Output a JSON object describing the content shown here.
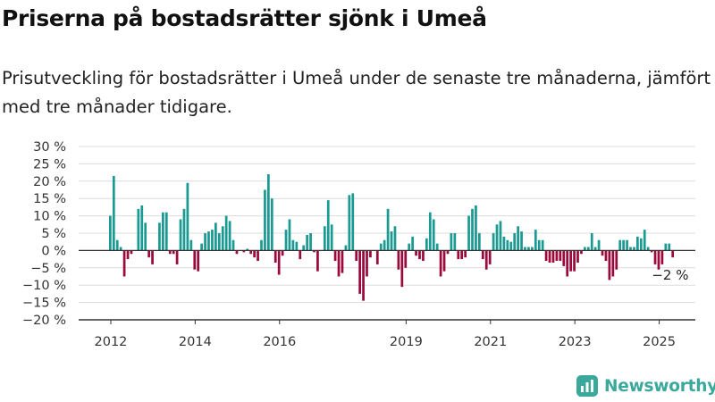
{
  "title": "Priserna på bostadsrätter sjönk i Umeå",
  "subtitle": "Prisutveckling för bostadsrätter i Umeå under de senaste tre månaderna, jämfört med tre månader tidigare.",
  "brand": {
    "name": "Newsworthy",
    "icon": "newsworthy-logo-icon",
    "color": "#3aa89a"
  },
  "colors": {
    "positive": "#1a9a92",
    "negative": "#9b0a3c",
    "grid": "#dcdcdc",
    "axis": "#333333"
  },
  "chart_data": {
    "type": "bar",
    "title": "Priserna på bostadsrätter sjönk i Umeå",
    "xlabel": "",
    "ylabel": "",
    "ylim": [
      -20,
      30
    ],
    "yticks": [
      30,
      25,
      20,
      15,
      10,
      5,
      0,
      -5,
      -10,
      -15,
      -20
    ],
    "ytick_labels": [
      "30 %",
      "25 %",
      "20 %",
      "15 %",
      "10 %",
      "5 %",
      "0 %",
      "−5 %",
      "−10 %",
      "−15 %",
      "−20 %"
    ],
    "xticks": [
      "2012",
      "2014",
      "2016",
      "2019",
      "2021",
      "2023",
      "2025"
    ],
    "grid": true,
    "annotation": {
      "text": "−2 %"
    },
    "x_start": "2012-01",
    "frequency": "monthly",
    "values": [
      10,
      21.5,
      3,
      1,
      -7.5,
      -2.5,
      -1,
      0,
      12,
      13,
      8,
      -2,
      -4,
      0,
      8,
      11,
      11,
      -1,
      -1,
      -4,
      9,
      12,
      19.5,
      3,
      -5.5,
      -6,
      2,
      5,
      5.5,
      6,
      8,
      5,
      7,
      10,
      8.5,
      3,
      -1,
      0,
      -0.5,
      0.5,
      -1,
      -2,
      -3,
      3,
      17.5,
      22,
      15,
      -3.5,
      -7,
      -1.5,
      6,
      9,
      3,
      2.5,
      -2.5,
      1.5,
      4.5,
      5,
      -0.5,
      -6,
      0,
      7,
      14.5,
      7.5,
      -3,
      -7.5,
      -6.5,
      1.5,
      16,
      16.5,
      -3,
      -12.5,
      -14.5,
      -7.5,
      -2,
      0,
      -4,
      2,
      3,
      12,
      5.5,
      7,
      -5.5,
      -10.5,
      -5,
      2,
      4,
      -1.5,
      -2.5,
      -3,
      3.5,
      11,
      9,
      2,
      -7.5,
      -6,
      -1,
      5,
      5,
      -2.5,
      -2.5,
      -2,
      10,
      12,
      13,
      5,
      -2.5,
      -5.5,
      -4,
      5,
      7.5,
      8.5,
      4,
      3,
      2.5,
      5,
      7,
      5.5,
      1,
      1,
      1,
      6,
      3,
      3,
      -3,
      -3.5,
      -3.5,
      -3,
      -3,
      -4.5,
      -7.5,
      -6,
      -6,
      -3.5,
      -1,
      1,
      1,
      5,
      1,
      3,
      -1.5,
      -3,
      -8.5,
      -7.5,
      -5.5,
      3,
      3,
      3,
      1,
      1,
      4,
      3.5,
      6,
      1,
      -0.5,
      -4,
      -5.5,
      -4,
      2,
      2,
      -2
    ]
  }
}
